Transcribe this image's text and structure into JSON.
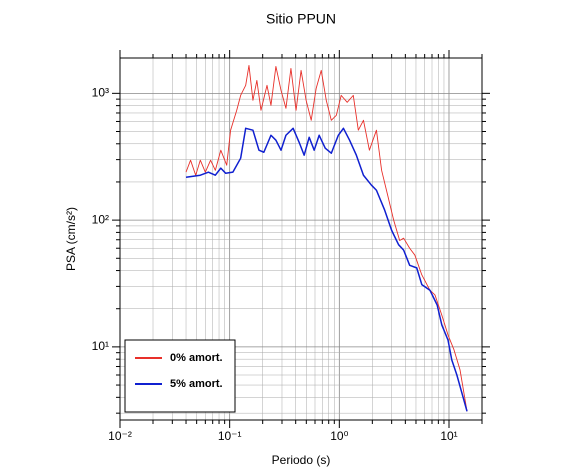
{
  "chart_data": {
    "type": "line",
    "title": "Sitio PPUN",
    "xlabel": "Periodo (s)",
    "ylabel": "PSA (cm/s²)",
    "xscale": "log",
    "yscale": "log",
    "grid": true,
    "legend": "lower left",
    "xlim": [
      0.01,
      20
    ],
    "ylim": [
      2.65,
      1900
    ],
    "xticks": [
      {
        "value": 0.01,
        "label": "10⁻²"
      },
      {
        "value": 0.1,
        "label": "10⁻¹"
      },
      {
        "value": 1,
        "label": "10⁰"
      },
      {
        "value": 10,
        "label": "10¹"
      }
    ],
    "xminorticks": [
      0.02,
      0.03,
      0.04,
      0.05,
      0.06,
      0.07,
      0.08,
      0.09,
      0.2,
      0.3,
      0.4,
      0.5,
      0.6,
      0.7,
      0.8,
      0.9,
      2,
      3,
      4,
      5,
      6,
      7,
      8,
      9,
      20
    ],
    "yticks": [
      {
        "value": 10,
        "label": "10¹"
      },
      {
        "value": 100,
        "label": "10²"
      },
      {
        "value": 1000,
        "label": "10³"
      }
    ],
    "yminorticks": [
      3,
      4,
      5,
      6,
      7,
      8,
      9,
      20,
      30,
      40,
      50,
      60,
      70,
      80,
      90,
      200,
      300,
      400,
      500,
      600,
      700,
      800,
      900
    ],
    "series": [
      {
        "name": "0% amort.",
        "color": "#e8302a",
        "x": [
          0.04,
          0.044,
          0.049,
          0.054,
          0.06,
          0.067,
          0.074,
          0.083,
          0.094,
          0.102,
          0.116,
          0.126,
          0.14,
          0.15,
          0.163,
          0.177,
          0.193,
          0.219,
          0.238,
          0.264,
          0.294,
          0.326,
          0.362,
          0.403,
          0.448,
          0.498,
          0.554,
          0.615,
          0.684,
          0.76,
          0.845,
          0.939,
          1.04,
          1.18,
          1.34,
          1.49,
          1.66,
          1.88,
          2.18,
          2.43,
          2.76,
          3.13,
          3.55,
          3.86,
          4.38,
          4.88,
          5.65,
          6.7,
          7.45,
          8.6,
          9.8,
          11.1,
          12.6,
          14.6
        ],
        "values": [
          239,
          297,
          226,
          297,
          239,
          297,
          247,
          356,
          271,
          512,
          735,
          964,
          1156,
          1661,
          881,
          1265,
          735,
          1156,
          805,
          1630,
          1056,
          762,
          1573,
          735,
          1517,
          881,
          613,
          1095,
          1517,
          881,
          613,
          671,
          964,
          850,
          964,
          512,
          613,
          356,
          512,
          247,
          157,
          100,
          69,
          72,
          60,
          53,
          37,
          28,
          25.7,
          17.8,
          12.4,
          9.5,
          6.6,
          3.1
        ]
      },
      {
        "name": "5% amort.",
        "color": "#1020d0",
        "x": [
          0.04,
          0.054,
          0.064,
          0.074,
          0.083,
          0.092,
          0.107,
          0.126,
          0.14,
          0.163,
          0.185,
          0.205,
          0.238,
          0.264,
          0.294,
          0.326,
          0.379,
          0.43,
          0.478,
          0.531,
          0.59,
          0.655,
          0.744,
          0.845,
          0.979,
          1.09,
          1.24,
          1.43,
          1.66,
          1.96,
          2.18,
          2.59,
          3.0,
          3.47,
          3.86,
          4.38,
          5.08,
          5.65,
          6.7,
          7.8,
          8.6,
          9.8,
          10.6,
          11.8,
          14.6
        ],
        "values": [
          218,
          226,
          239,
          226,
          257,
          234,
          239,
          308,
          530,
          512,
          356,
          343,
          467,
          427,
          356,
          467,
          530,
          411,
          325,
          450,
          356,
          467,
          369,
          337,
          467,
          530,
          427,
          325,
          226,
          189,
          172,
          120,
          83,
          64,
          58,
          44,
          42,
          31,
          28,
          21.4,
          14.9,
          11.3,
          7.9,
          6.0,
          3.1
        ]
      }
    ]
  }
}
